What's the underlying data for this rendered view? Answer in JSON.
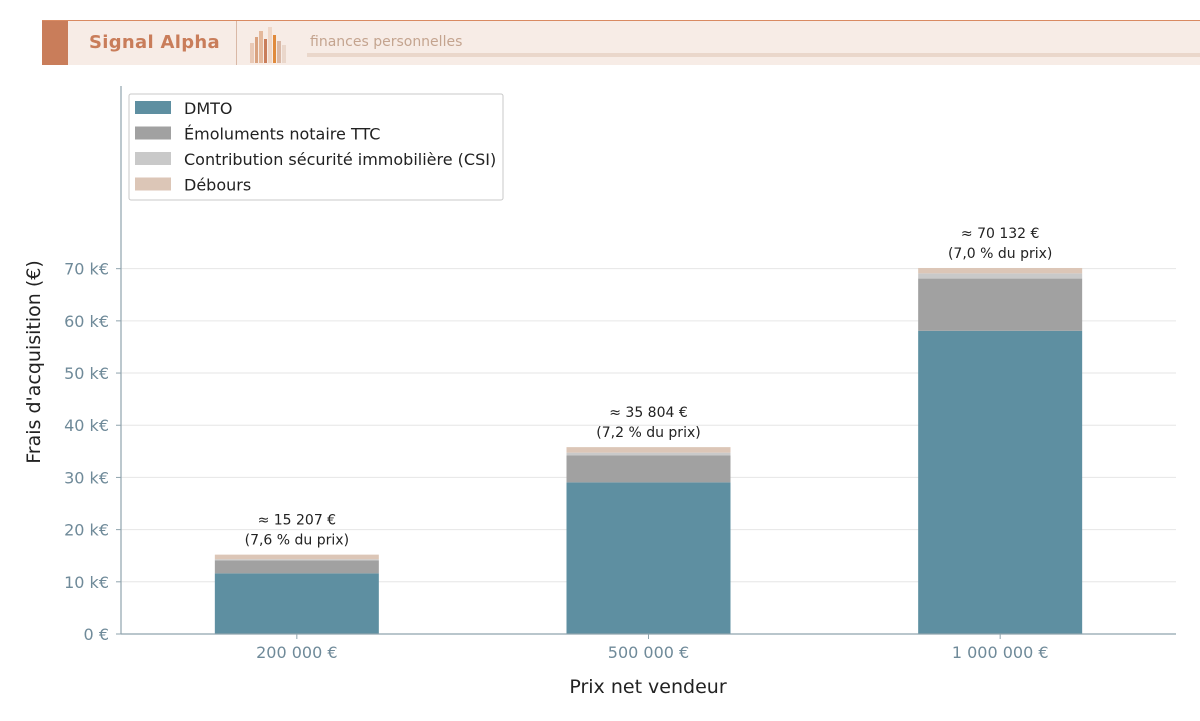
{
  "brand": {
    "name": "Signal Alpha",
    "tagline": "finances personnelles"
  },
  "colors": {
    "brand": "#c97d5a",
    "axis": "#6f8a99"
  },
  "chart_data": {
    "type": "bar",
    "stacked": true,
    "categories": [
      "200 000 €",
      "500 000 €",
      "1 000 000 €"
    ],
    "series": [
      {
        "name": "DMTO",
        "color": "#5e8fa1",
        "values": [
          11620,
          29050,
          58100
        ]
      },
      {
        "name": "Émoluments notaire TTC",
        "color": "#a1a1a1",
        "values": [
          2500,
          5200,
          10000
        ]
      },
      {
        "name": "Contribution sécurité immobilière (CSI)",
        "color": "#c9c9c9",
        "values": [
          200,
          500,
          1000
        ]
      },
      {
        "name": "Débours",
        "color": "#dcc6b7",
        "values": [
          887,
          1054,
          1032
        ]
      }
    ],
    "annotations": [
      {
        "line1": "≈ 15 207 €",
        "line2": "(7,6 % du prix)"
      },
      {
        "line1": "≈ 35 804 €",
        "line2": "(7,2 % du prix)"
      },
      {
        "line1": "≈ 70 132 €",
        "line2": "(7,0 % du prix)"
      }
    ],
    "xlabel": "Prix net vendeur",
    "ylabel": "Frais d'acquisition (€)",
    "yticks": [
      0,
      10000,
      20000,
      30000,
      40000,
      50000,
      60000,
      70000
    ],
    "ytick_labels": [
      "0 €",
      "10 k€",
      "20 k€",
      "30 k€",
      "40 k€",
      "50 k€",
      "60 k€",
      "70 k€"
    ],
    "ylim": [
      0,
      105000
    ],
    "grid": "horizontal",
    "legend": "top-left"
  }
}
